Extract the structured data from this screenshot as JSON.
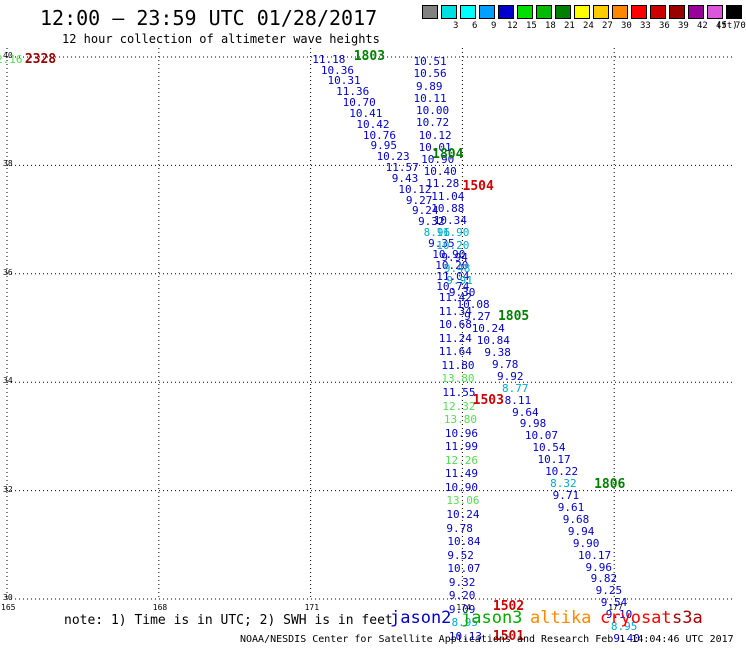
{
  "header": {
    "title": "12:00 – 23:59 UTC 01/28/2017",
    "subtitle": "12 hour collection of altimeter wave heights"
  },
  "legend": {
    "unit": "(ft)",
    "items": [
      {
        "label": "",
        "color": "#808080"
      },
      {
        "label": "3",
        "color": "#00e0e0"
      },
      {
        "label": "6",
        "color": "#00ffff"
      },
      {
        "label": "9",
        "color": "#00a0ff"
      },
      {
        "label": "12",
        "color": "#0000cc"
      },
      {
        "label": "15",
        "color": "#00dd00"
      },
      {
        "label": "18",
        "color": "#00bb00"
      },
      {
        "label": "21",
        "color": "#008000"
      },
      {
        "label": "24",
        "color": "#ffff00"
      },
      {
        "label": "27",
        "color": "#ffcc00"
      },
      {
        "label": "30",
        "color": "#ff8800"
      },
      {
        "label": "33",
        "color": "#ff0000"
      },
      {
        "label": "36",
        "color": "#cc0000"
      },
      {
        "label": "39",
        "color": "#990000"
      },
      {
        "label": "42",
        "color": "#990099"
      },
      {
        "label": "45",
        "color": "#dd55dd"
      },
      {
        "label": "70",
        "color": "#000000"
      }
    ]
  },
  "axes": {
    "lon_ticks": [
      "165",
      "168",
      "171",
      "174",
      "177"
    ],
    "lat_ticks": [
      "40",
      "38",
      "36",
      "34",
      "32",
      "30"
    ]
  },
  "colors": {
    "jason2": "#0000cc",
    "jason3": "#00aa00",
    "altika": "#ff8800",
    "cryosat": "#ff0000",
    "s3a": "#aa0000",
    "grid": "#000000"
  },
  "observations": [
    {
      "v": "2.16",
      "lon": 165.1,
      "lat": 39.95,
      "c": "#55dd55"
    },
    {
      "v": "11.18",
      "lon": 171.35,
      "lat": 39.95,
      "c": "#0000cc"
    },
    {
      "v": "10.36",
      "lon": 171.52,
      "lat": 39.75,
      "c": "#0000cc"
    },
    {
      "v": "10.31",
      "lon": 171.65,
      "lat": 39.55,
      "c": "#0000cc"
    },
    {
      "v": "11.36",
      "lon": 171.82,
      "lat": 39.35,
      "c": "#0000cc"
    },
    {
      "v": "10.70",
      "lon": 171.95,
      "lat": 39.15,
      "c": "#0000cc"
    },
    {
      "v": "10.41",
      "lon": 172.08,
      "lat": 38.95,
      "c": "#0000cc"
    },
    {
      "v": "10.42",
      "lon": 172.22,
      "lat": 38.75,
      "c": "#0000cc"
    },
    {
      "v": "10.76",
      "lon": 172.35,
      "lat": 38.55,
      "c": "#0000cc"
    },
    {
      "v": "9.95",
      "lon": 172.5,
      "lat": 38.35,
      "c": "#0000cc"
    },
    {
      "v": "10.23",
      "lon": 172.62,
      "lat": 38.15,
      "c": "#0000cc"
    },
    {
      "v": "11.57",
      "lon": 172.8,
      "lat": 37.95,
      "c": "#0000cc"
    },
    {
      "v": "9.43",
      "lon": 172.92,
      "lat": 37.75,
      "c": "#0000cc"
    },
    {
      "v": "10.12",
      "lon": 173.05,
      "lat": 37.55,
      "c": "#0000cc"
    },
    {
      "v": "9.27",
      "lon": 173.2,
      "lat": 37.35,
      "c": "#0000cc"
    },
    {
      "v": "9.24",
      "lon": 173.32,
      "lat": 37.15,
      "c": "#0000cc"
    },
    {
      "v": "9.32",
      "lon": 173.44,
      "lat": 36.95,
      "c": "#0000cc"
    },
    {
      "v": "8.96",
      "lon": 173.55,
      "lat": 36.75,
      "c": "#00aacc"
    },
    {
      "v": "9.35",
      "lon": 173.64,
      "lat": 36.55,
      "c": "#0000cc"
    },
    {
      "v": "10.90",
      "lon": 173.72,
      "lat": 36.35,
      "c": "#0000cc"
    },
    {
      "v": "10.20",
      "lon": 173.78,
      "lat": 36.15,
      "c": "#0000cc"
    },
    {
      "v": "11.04",
      "lon": 173.8,
      "lat": 35.95,
      "c": "#0000cc"
    },
    {
      "v": "10.74",
      "lon": 173.8,
      "lat": 35.75,
      "c": "#0000cc"
    },
    {
      "v": "11.42",
      "lon": 173.85,
      "lat": 35.55,
      "c": "#0000cc"
    },
    {
      "v": "11.34",
      "lon": 173.85,
      "lat": 35.3,
      "c": "#0000cc"
    },
    {
      "v": "10.68",
      "lon": 173.85,
      "lat": 35.05,
      "c": "#0000cc"
    },
    {
      "v": "11.24",
      "lon": 173.85,
      "lat": 34.8,
      "c": "#0000cc"
    },
    {
      "v": "11.64",
      "lon": 173.85,
      "lat": 34.55,
      "c": "#0000cc"
    },
    {
      "v": "11.80",
      "lon": 173.9,
      "lat": 34.3,
      "c": "#0000cc"
    },
    {
      "v": "13.80",
      "lon": 173.9,
      "lat": 34.05,
      "c": "#55dd55"
    },
    {
      "v": "11.55",
      "lon": 173.92,
      "lat": 33.8,
      "c": "#0000cc"
    },
    {
      "v": "12.32",
      "lon": 173.92,
      "lat": 33.55,
      "c": "#55dd55"
    },
    {
      "v": "13.80",
      "lon": 173.95,
      "lat": 33.3,
      "c": "#55dd55"
    },
    {
      "v": "10.96",
      "lon": 173.97,
      "lat": 33.05,
      "c": "#0000cc"
    },
    {
      "v": "11.99",
      "lon": 173.97,
      "lat": 32.8,
      "c": "#0000cc"
    },
    {
      "v": "12.26",
      "lon": 173.97,
      "lat": 32.55,
      "c": "#55dd55"
    },
    {
      "v": "11.49",
      "lon": 173.97,
      "lat": 32.3,
      "c": "#0000cc"
    },
    {
      "v": "10.90",
      "lon": 173.97,
      "lat": 32.05,
      "c": "#0000cc"
    },
    {
      "v": "13.06",
      "lon": 174.0,
      "lat": 31.8,
      "c": "#55dd55"
    },
    {
      "v": "10.24",
      "lon": 174.0,
      "lat": 31.55,
      "c": "#0000cc"
    },
    {
      "v": "9.78",
      "lon": 174.0,
      "lat": 31.3,
      "c": "#0000cc"
    },
    {
      "v": "10.84",
      "lon": 174.02,
      "lat": 31.05,
      "c": "#0000cc"
    },
    {
      "v": "9.52",
      "lon": 174.02,
      "lat": 30.8,
      "c": "#0000cc"
    },
    {
      "v": "10.07",
      "lon": 174.02,
      "lat": 30.55,
      "c": "#0000cc"
    },
    {
      "v": "9.32",
      "lon": 174.05,
      "lat": 30.3,
      "c": "#0000cc"
    },
    {
      "v": "9.20",
      "lon": 174.05,
      "lat": 30.05,
      "c": "#0000cc"
    },
    {
      "v": "9.09",
      "lon": 174.05,
      "lat": 29.8,
      "c": "#0000cc"
    },
    {
      "v": "8.95",
      "lon": 174.1,
      "lat": 29.55,
      "c": "#00aacc"
    },
    {
      "v": "10.13",
      "lon": 174.05,
      "lat": 29.3,
      "c": "#0000cc"
    },
    {
      "v": "10.51",
      "lon": 173.35,
      "lat": 39.9,
      "c": "#0000cc"
    },
    {
      "v": "10.56",
      "lon": 173.35,
      "lat": 39.68,
      "c": "#0000cc"
    },
    {
      "v": "9.89",
      "lon": 173.4,
      "lat": 39.45,
      "c": "#0000cc"
    },
    {
      "v": "10.11",
      "lon": 173.35,
      "lat": 39.22,
      "c": "#0000cc"
    },
    {
      "v": "10.00",
      "lon": 173.4,
      "lat": 39.0,
      "c": "#0000cc"
    },
    {
      "v": "10.72",
      "lon": 173.4,
      "lat": 38.78,
      "c": "#0000cc"
    },
    {
      "v": "10.12",
      "lon": 173.45,
      "lat": 38.55,
      "c": "#0000cc"
    },
    {
      "v": "10.01",
      "lon": 173.45,
      "lat": 38.33,
      "c": "#0000cc"
    },
    {
      "v": "10.90",
      "lon": 173.5,
      "lat": 38.1,
      "c": "#0000cc"
    },
    {
      "v": "10.40",
      "lon": 173.55,
      "lat": 37.88,
      "c": "#0000cc"
    },
    {
      "v": "11.28",
      "lon": 173.6,
      "lat": 37.65,
      "c": "#0000cc"
    },
    {
      "v": "11.04",
      "lon": 173.7,
      "lat": 37.42,
      "c": "#0000cc"
    },
    {
      "v": "10.88",
      "lon": 173.7,
      "lat": 37.2,
      "c": "#0000cc"
    },
    {
      "v": "10.34",
      "lon": 173.75,
      "lat": 36.98,
      "c": "#0000cc"
    },
    {
      "v": "11.90",
      "lon": 173.8,
      "lat": 36.75,
      "c": "#00aacc"
    },
    {
      "v": "10.20",
      "lon": 173.8,
      "lat": 36.52,
      "c": "#00aacc"
    },
    {
      "v": "9.94",
      "lon": 173.9,
      "lat": 36.3,
      "c": "#0000cc"
    },
    {
      "v": "9.48",
      "lon": 173.95,
      "lat": 36.08,
      "c": "#00aacc"
    },
    {
      "v": "9.91",
      "lon": 174.0,
      "lat": 35.86,
      "c": "#00aacc"
    },
    {
      "v": "9.30",
      "lon": 174.05,
      "lat": 35.64,
      "c": "#0000cc"
    },
    {
      "v": "10.08",
      "lon": 174.2,
      "lat": 35.42,
      "c": "#0000cc"
    },
    {
      "v": "9.27",
      "lon": 174.35,
      "lat": 35.2,
      "c": "#0000cc"
    },
    {
      "v": "10.24",
      "lon": 174.5,
      "lat": 34.98,
      "c": "#0000cc"
    },
    {
      "v": "10.84",
      "lon": 174.6,
      "lat": 34.76,
      "c": "#0000cc"
    },
    {
      "v": "9.38",
      "lon": 174.75,
      "lat": 34.54,
      "c": "#0000cc"
    },
    {
      "v": "9.78",
      "lon": 174.9,
      "lat": 34.32,
      "c": "#0000cc"
    },
    {
      "v": "9.92",
      "lon": 175.0,
      "lat": 34.1,
      "c": "#0000cc"
    },
    {
      "v": "8.77",
      "lon": 175.1,
      "lat": 33.88,
      "c": "#00aacc"
    },
    {
      "v": "8.11",
      "lon": 175.15,
      "lat": 33.66,
      "c": "#0000cc"
    },
    {
      "v": "9.64",
      "lon": 175.3,
      "lat": 33.44,
      "c": "#0000cc"
    },
    {
      "v": "9.98",
      "lon": 175.45,
      "lat": 33.22,
      "c": "#0000cc"
    },
    {
      "v": "10.07",
      "lon": 175.55,
      "lat": 33.0,
      "c": "#0000cc"
    },
    {
      "v": "10.54",
      "lon": 175.7,
      "lat": 32.78,
      "c": "#0000cc"
    },
    {
      "v": "10.17",
      "lon": 175.8,
      "lat": 32.56,
      "c": "#0000cc"
    },
    {
      "v": "10.22",
      "lon": 175.95,
      "lat": 32.34,
      "c": "#0000cc"
    },
    {
      "v": "8.32",
      "lon": 176.05,
      "lat": 32.12,
      "c": "#00aacc"
    },
    {
      "v": "9.71",
      "lon": 176.1,
      "lat": 31.9,
      "c": "#0000cc"
    },
    {
      "v": "9.61",
      "lon": 176.2,
      "lat": 31.68,
      "c": "#0000cc"
    },
    {
      "v": "9.68",
      "lon": 176.3,
      "lat": 31.46,
      "c": "#0000cc"
    },
    {
      "v": "9.94",
      "lon": 176.4,
      "lat": 31.24,
      "c": "#0000cc"
    },
    {
      "v": "9.90",
      "lon": 176.5,
      "lat": 31.02,
      "c": "#0000cc"
    },
    {
      "v": "10.17",
      "lon": 176.6,
      "lat": 30.8,
      "c": "#0000cc"
    },
    {
      "v": "9.96",
      "lon": 176.75,
      "lat": 30.58,
      "c": "#0000cc"
    },
    {
      "v": "9.82",
      "lon": 176.85,
      "lat": 30.36,
      "c": "#0000cc"
    },
    {
      "v": "9.25",
      "lon": 176.95,
      "lat": 30.14,
      "c": "#0000cc"
    },
    {
      "v": "9.54",
      "lon": 177.05,
      "lat": 29.92,
      "c": "#0000cc"
    },
    {
      "v": "9.10",
      "lon": 177.15,
      "lat": 29.7,
      "c": "#0000cc"
    },
    {
      "v": "8.95",
      "lon": 177.25,
      "lat": 29.48,
      "c": "#00aacc"
    },
    {
      "v": "9.40",
      "lon": 177.3,
      "lat": 29.26,
      "c": "#0000cc"
    }
  ],
  "cycle_labels": [
    {
      "t": "2328",
      "lon": 165.55,
      "lat": 39.95,
      "c": "#990000"
    },
    {
      "t": "1803",
      "lon": 172.05,
      "lat": 40.0,
      "c": "#008000"
    },
    {
      "t": "1804",
      "lon": 173.6,
      "lat": 38.2,
      "c": "#008000"
    },
    {
      "t": "1504",
      "lon": 174.2,
      "lat": 37.6,
      "c": "#cc0000"
    },
    {
      "t": "1805",
      "lon": 174.9,
      "lat": 35.2,
      "c": "#008000"
    },
    {
      "t": "1503",
      "lon": 174.4,
      "lat": 33.65,
      "c": "#cc0000"
    },
    {
      "t": "1806",
      "lon": 176.8,
      "lat": 32.1,
      "c": "#008000"
    },
    {
      "t": "1502",
      "lon": 174.8,
      "lat": 29.85,
      "c": "#cc0000"
    },
    {
      "t": "1501",
      "lon": 174.8,
      "lat": 29.3,
      "c": "#cc0000"
    }
  ],
  "footer": {
    "note": "note: 1) Time is in UTC; 2) SWH is in feet",
    "satellites": {
      "jason2": "jason2",
      "jason3": "jason3",
      "altika": "altika",
      "cryosat": "cryosat",
      "s3a": "s3a"
    },
    "credit": "NOAA/NESDIS Center for Satellite Applications and Research   Feb  1 14:04:46 UTC 2017"
  }
}
